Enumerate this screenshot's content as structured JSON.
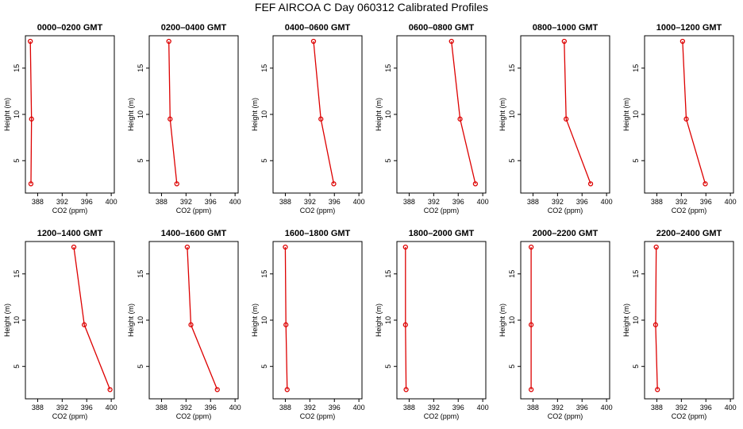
{
  "suptitle": "FEF AIRCOA C  Day 060312  Calibrated Profiles",
  "chart_data": {
    "type": "line",
    "xlabel": "CO2 (ppm)",
    "ylabel": "Height (m)",
    "xlim": [
      386,
      400.5
    ],
    "ylim": [
      1.5,
      18.5
    ],
    "xticks": [
      388,
      392,
      396,
      400
    ],
    "yticks": [
      5,
      10,
      15
    ],
    "heights": [
      17.9,
      9.5,
      2.5
    ],
    "series_color": "#dd0000",
    "panels": [
      {
        "title": "0000–0200 GMT",
        "values": [
          386.8,
          387.0,
          386.9
        ]
      },
      {
        "title": "0200–0400 GMT",
        "values": [
          389.2,
          389.4,
          390.5
        ]
      },
      {
        "title": "0400–0600 GMT",
        "values": [
          392.6,
          393.8,
          395.9
        ]
      },
      {
        "title": "0600–0800 GMT",
        "values": [
          394.9,
          396.3,
          398.8
        ]
      },
      {
        "title": "0800–1000 GMT",
        "values": [
          393.1,
          393.4,
          397.4
        ]
      },
      {
        "title": "1000–1200 GMT",
        "values": [
          392.2,
          392.8,
          395.9
        ]
      },
      {
        "title": "1200–1400 GMT",
        "values": [
          393.9,
          395.6,
          399.8
        ]
      },
      {
        "title": "1400–1600 GMT",
        "values": [
          392.2,
          392.8,
          397.1
        ]
      },
      {
        "title": "1600–1800 GMT",
        "values": [
          388.0,
          388.1,
          388.3
        ]
      },
      {
        "title": "1800–2000 GMT",
        "values": [
          387.4,
          387.4,
          387.5
        ]
      },
      {
        "title": "2000–2200 GMT",
        "values": [
          387.7,
          387.7,
          387.7
        ]
      },
      {
        "title": "2200–2400 GMT",
        "values": [
          387.9,
          387.8,
          388.1
        ]
      }
    ]
  }
}
